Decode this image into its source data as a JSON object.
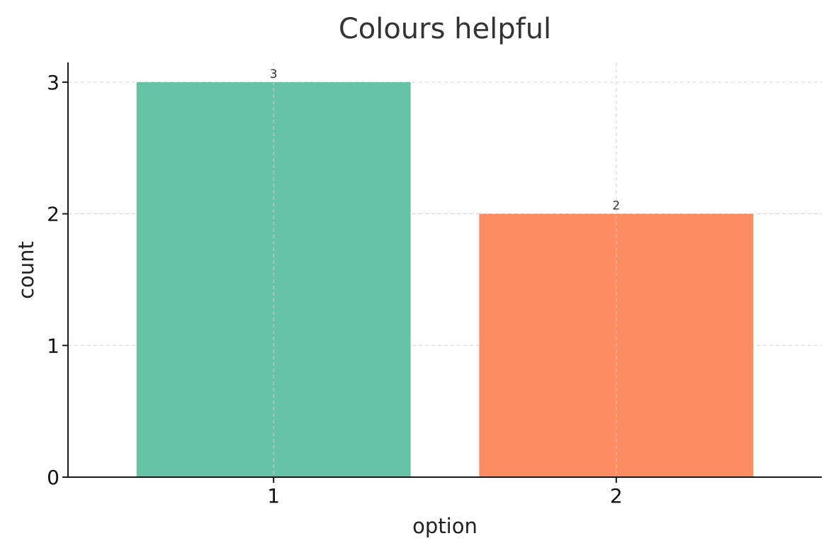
{
  "chart_data": {
    "type": "bar",
    "title": "Colours helpful",
    "xlabel": "option",
    "ylabel": "count",
    "categories": [
      "1",
      "2"
    ],
    "values": [
      3,
      2
    ],
    "data_labels": [
      "3",
      "2"
    ],
    "y_ticks": [
      "0",
      "1",
      "2",
      "3"
    ],
    "ylim": [
      0,
      3.15
    ],
    "grid": true,
    "legend": "none",
    "colors": [
      "#66c2a5",
      "#fc8d62"
    ]
  }
}
